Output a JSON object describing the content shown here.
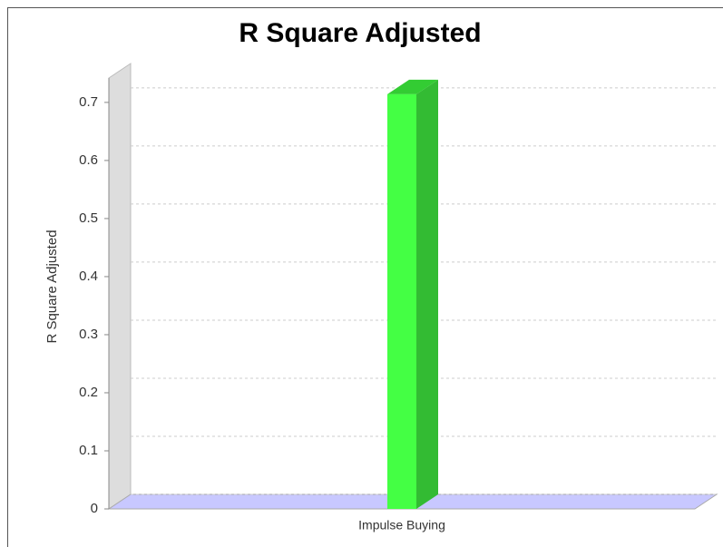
{
  "chart_data": {
    "type": "bar3d",
    "title": "R Square Adjusted",
    "ylabel": "R Square Adjusted",
    "categories": [
      "Impulse Buying"
    ],
    "values": [
      0.714
    ],
    "color": "#44ff44",
    "ylim": [
      0,
      0.742
    ],
    "yticks": [
      0,
      0.1,
      0.2,
      0.3,
      0.4,
      0.5,
      0.6,
      0.7
    ],
    "grid": true
  }
}
